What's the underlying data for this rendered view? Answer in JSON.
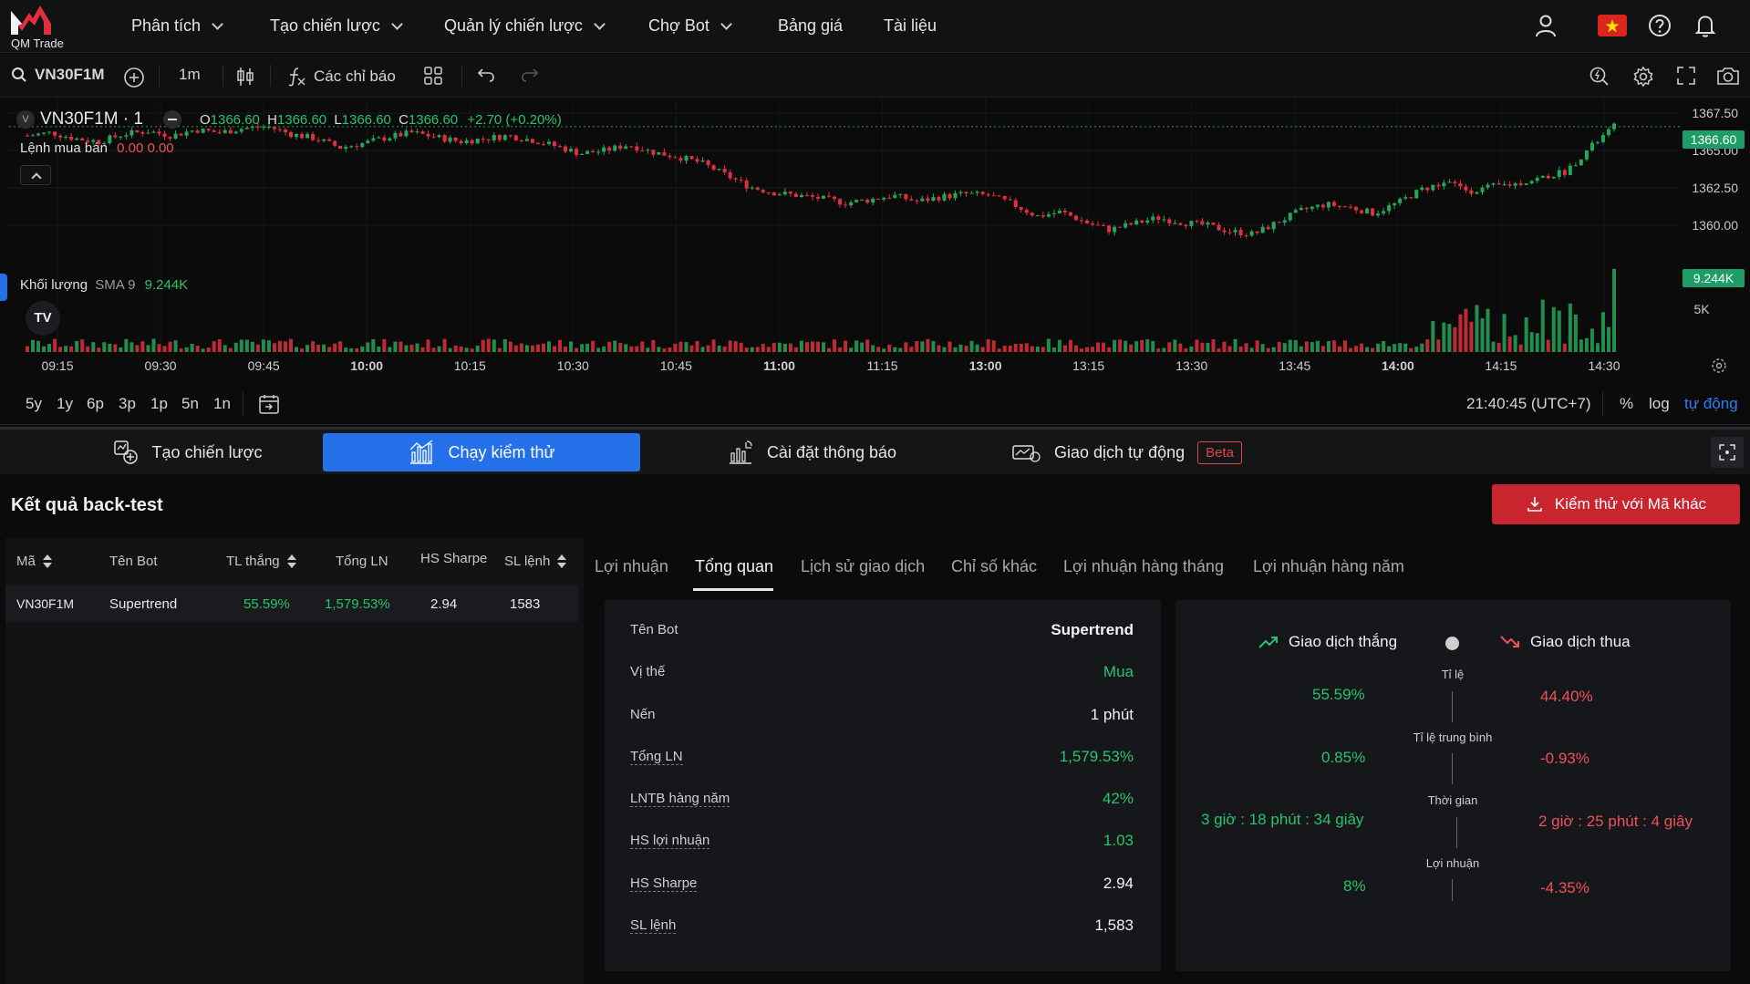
{
  "nav": {
    "logo_text": "QM Trade",
    "items": [
      "Phân tích",
      "Tạo chiến lược",
      "Quản lý chiến lược",
      "Chợ Bot",
      "Bảng giá",
      "Tài liệu"
    ]
  },
  "toolbar": {
    "symbol": "VN30F1M",
    "interval": "1m",
    "indicators_label": "Các chỉ báo"
  },
  "chart": {
    "symbol_title": "VN30F1M · 1",
    "ohlc": {
      "o_label": "O",
      "o": "1366.60",
      "h_label": "H",
      "h": "1366.60",
      "l_label": "L",
      "l": "1366.60",
      "c_label": "C",
      "c": "1366.60",
      "change": "+2.70 (+0.20%)"
    },
    "orders_label": "Lệnh mua bán",
    "orders_values": "0.00  0.00",
    "volume_label": "Khối lượng",
    "volume_sma": "SMA 9",
    "volume_value": "9.244K",
    "price_badge": "1366.60",
    "volume_badge": "9.244K"
  },
  "chart_data": {
    "type": "candlestick",
    "x_ticks": [
      "09:15",
      "09:30",
      "09:45",
      "10:00",
      "10:15",
      "10:30",
      "10:45",
      "11:00",
      "11:15",
      "13:00",
      "13:15",
      "13:30",
      "13:45",
      "14:00",
      "14:15",
      "14:30"
    ],
    "y_ticks": [
      "1367.50",
      "1365.00",
      "1362.50",
      "1360.00"
    ],
    "volume_ticks": [
      "5K"
    ],
    "ylim": [
      1357.8,
      1368.0
    ],
    "close_path": [
      1366.0,
      1366.2,
      1365.8,
      1365.6,
      1366.1,
      1366.3,
      1366.0,
      1366.4,
      1366.2,
      1366.5,
      1366.6,
      1366.1,
      1365.8,
      1365.2,
      1365.5,
      1365.9,
      1366.2,
      1365.9,
      1365.6,
      1365.8,
      1366.0,
      1365.7,
      1365.3,
      1364.8,
      1365.0,
      1365.4,
      1364.9,
      1364.6,
      1364.2,
      1363.4,
      1362.6,
      1362.2,
      1362.0,
      1361.8,
      1361.5,
      1361.7,
      1362.0,
      1361.6,
      1361.9,
      1362.1,
      1362.0,
      1361.4,
      1360.6,
      1360.9,
      1360.2,
      1359.7,
      1360.1,
      1360.5,
      1360.2,
      1360.0,
      1359.6,
      1359.4,
      1360.2,
      1361.0,
      1361.4,
      1361.2,
      1360.8,
      1361.5,
      1362.4,
      1362.9,
      1362.3,
      1362.6,
      1362.8,
      1363.2,
      1363.6,
      1365.2,
      1366.6
    ]
  },
  "ranges": [
    "5y",
    "1y",
    "6p",
    "3p",
    "1p",
    "5n",
    "1n"
  ],
  "clock": "21:40:45 (UTC+7)",
  "scale_opts": [
    "%",
    "log",
    "tự động"
  ],
  "tabs": [
    {
      "label": "Tạo chiến lược"
    },
    {
      "label": "Chạy kiểm thử"
    },
    {
      "label": "Cài đặt thông báo"
    },
    {
      "label": "Giao dịch tự động",
      "badge": "Beta"
    }
  ],
  "backtest": {
    "title": "Kết quả back-test",
    "other_symbol_button": "Kiểm thử với Mã khác",
    "columns": [
      "Mã",
      "Tên Bot",
      "TL thắng",
      "Tổng LN",
      "HS Sharpe",
      "SL lệnh"
    ],
    "rows": [
      {
        "symbol": "VN30F1M",
        "bot": "Supertrend",
        "win_rate": "55.59%",
        "total_pnl": "1,579.53%",
        "sharpe": "2.94",
        "orders": "1583"
      }
    ],
    "subtabs": [
      "Lợi nhuận",
      "Tổng quan",
      "Lịch sử giao dịch",
      "Chỉ số khác",
      "Lợi nhuận hàng tháng",
      "Lợi nhuận hàng năm"
    ],
    "overview": [
      {
        "label": "Tên Bot",
        "value": "Supertrend"
      },
      {
        "label": "Vị thế",
        "value": "Mua"
      },
      {
        "label": "Nến",
        "value": "1 phút"
      },
      {
        "label": "Tổng LN",
        "value": "1,579.53%"
      },
      {
        "label": "LNTB hàng năm",
        "value": "42%"
      },
      {
        "label": "HS lợi nhuận",
        "value": "1.03"
      },
      {
        "label": "HS Sharpe",
        "value": "2.94"
      },
      {
        "label": "SL lệnh",
        "value": "1,583"
      }
    ],
    "compare": {
      "win_label": "Giao dịch thắng",
      "loss_label": "Giao dịch thua",
      "metrics": [
        {
          "label": "Tỉ lệ",
          "win": "55.59%",
          "loss": "44.40%"
        },
        {
          "label": "Tỉ lệ trung bình",
          "win": "0.85%",
          "loss": "-0.93%"
        },
        {
          "label": "Thời gian",
          "win": "3 giờ : 18 phút : 34 giây",
          "loss": "2 giờ : 25 phút : 4 giây"
        },
        {
          "label": "Lợi nhuận",
          "win": "8%",
          "loss": "-4.35%"
        }
      ]
    }
  },
  "colors": {
    "up": "#26a65b",
    "down": "#e0303d",
    "accent": "#2370e8",
    "price_badge": "#1e9e67"
  }
}
